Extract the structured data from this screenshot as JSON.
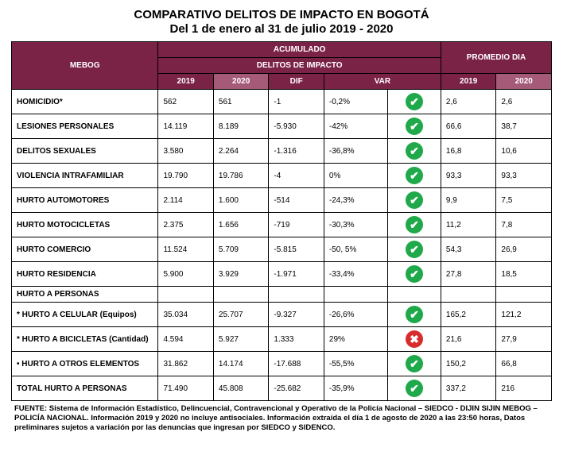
{
  "title_line1": "COMPARATIVO DELITOS DE IMPACTO EN BOGOTÁ",
  "title_line2": "Del 1 de enero al 31 de julio 2019 - 2020",
  "headers": {
    "mebog": "MEBOG",
    "acumulado": "ACUMULADO",
    "delitos": "DELITOS DE IMPACTO",
    "promedio": "PROMEDIO DIA",
    "y2019": "2019",
    "y2020": "2020",
    "dif": "DIF",
    "var": "VAR"
  },
  "colors": {
    "header_bg": "#7b2247",
    "header_2020_bg": "#a55a77",
    "border": "#000000",
    "check_bg": "#1fa94a",
    "cross_bg": "#d82c2c"
  },
  "rows": [
    {
      "label": "HOMICIDIO*",
      "y2019": "562",
      "y2020": "561",
      "dif": "-1",
      "var": "-0,2%",
      "status": "ok",
      "avg2019": "2,6",
      "avg2020": "2,6"
    },
    {
      "label": "LESIONES PERSONALES",
      "y2019": "14.119",
      "y2020": "8.189",
      "dif": "-5.930",
      "var": "-42%",
      "status": "ok",
      "avg2019": "66,6",
      "avg2020": "38,7"
    },
    {
      "label": "DELITOS SEXUALES",
      "y2019": "3.580",
      "y2020": "2.264",
      "dif": "-1.316",
      "var": "-36,8%",
      "status": "ok",
      "avg2019": "16,8",
      "avg2020": "10,6"
    },
    {
      "label": "VIOLENCIA INTRAFAMILIAR",
      "y2019": "19.790",
      "y2020": "19.786",
      "dif": "-4",
      "var": "0%",
      "status": "ok",
      "avg2019": "93,3",
      "avg2020": "93,3"
    },
    {
      "label": "HURTO AUTOMOTORES",
      "y2019": "2.114",
      "y2020": "1.600",
      "dif": "-514",
      "var": "-24,3%",
      "status": "ok",
      "avg2019": "9,9",
      "avg2020": "7,5"
    },
    {
      "label": "HURTO MOTOCICLETAS",
      "y2019": "2.375",
      "y2020": "1.656",
      "dif": "-719",
      "var": "-30,3%",
      "status": "ok",
      "avg2019": "11,2",
      "avg2020": "7,8"
    },
    {
      "label": "HURTO COMERCIO",
      "y2019": "11.524",
      "y2020": "5.709",
      "dif": "-5.815",
      "var": "-50, 5%",
      "status": "ok",
      "avg2019": "54,3",
      "avg2020": "26,9"
    },
    {
      "label": "HURTO RESIDENCIA",
      "y2019": "5.900",
      "y2020": "3.929",
      "dif": "-1.971",
      "var": "-33,4%",
      "status": "ok",
      "avg2019": "27,8",
      "avg2020": "18,5"
    }
  ],
  "section_label": "HURTO A PERSONAS",
  "rows2": [
    {
      "label": "*  HURTO A CELULAR (Equipos)",
      "y2019": "35.034",
      "y2020": "25.707",
      "dif": "-9.327",
      "var": "-26,6%",
      "status": "ok",
      "avg2019": "165,2",
      "avg2020": "121,2"
    },
    {
      "label": "*  HURTO A BICICLETAS (Cantidad)",
      "y2019": "4.594",
      "y2020": "5.927",
      "dif": "1.333",
      "var": "29%",
      "status": "bad",
      "avg2019": "21,6",
      "avg2020": "27,9"
    },
    {
      "label": "•    HURTO A OTROS ELEMENTOS",
      "y2019": "31.862",
      "y2020": "14.174",
      "dif": "-17.688",
      "var": "-55,5%",
      "status": "ok",
      "avg2019": "150,2",
      "avg2020": "66,8"
    },
    {
      "label": "TOTAL HURTO A PERSONAS",
      "y2019": "71.490",
      "y2020": "45.808",
      "dif": "-25.682",
      "var": "-35,9%",
      "status": "ok",
      "avg2019": "337,2",
      "avg2020": "216"
    }
  ],
  "footnote": "FUENTE: Sistema de Información Estadístico, Delincuencial, Contravencional y Operativo de la Policía Nacional – SIEDCO - DIJIN SIJIN MEBOG – POLICÍA NACIONAL. Información 2019 y 2020 no incluye antisociales. Información extraída el día 1 de agosto de 2020 a las 23:50 horas, Datos preliminares sujetos a variación por las denuncias que ingresan por SIEDCO y SIDENCO."
}
